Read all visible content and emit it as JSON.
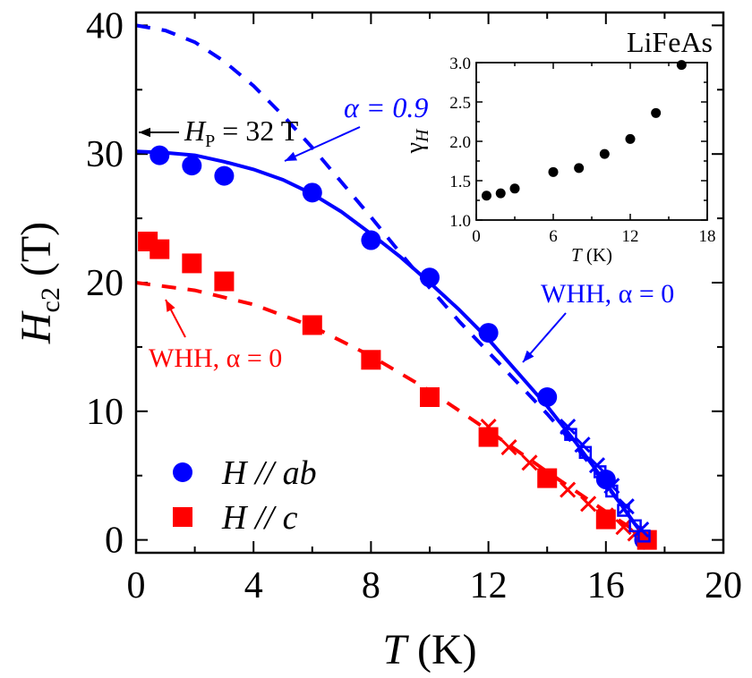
{
  "chart_data": [
    {
      "type": "scatter",
      "xlabel_symbol": "T",
      "xlabel_unit": "(K)",
      "ylabel_symbol": "H",
      "ylabel_sub": "c2",
      "ylabel_unit": "(T)",
      "xlim": [
        0,
        20
      ],
      "ylim": [
        -1,
        41
      ],
      "xticks": [
        0,
        4,
        8,
        12,
        16,
        20
      ],
      "yticks": [
        0,
        10,
        20,
        30,
        40
      ],
      "legend_position": "bottom-left",
      "series": [
        {
          "name": "ab_points",
          "legend": {
            "prefix": "H // ",
            "suffix": "ab"
          },
          "marker": "circle",
          "color": "#0000ff",
          "x": [
            0.8,
            1.9,
            3.0,
            6.0,
            8.0,
            10.0,
            12.0,
            14.0,
            16.0,
            17.3
          ],
          "y": [
            29.9,
            29.1,
            28.3,
            27.0,
            23.3,
            20.4,
            16.1,
            11.1,
            4.7,
            0.0
          ]
        },
        {
          "name": "c_points",
          "legend": {
            "prefix": "H // ",
            "suffix": "c"
          },
          "marker": "square",
          "color": "#ff0000",
          "x": [
            0.4,
            0.8,
            1.9,
            3.0,
            6.0,
            8.0,
            10.0,
            12.0,
            14.0,
            16.0,
            17.4
          ],
          "y": [
            23.2,
            22.6,
            21.5,
            20.1,
            16.7,
            14.0,
            11.1,
            8.0,
            4.8,
            1.6,
            0.0
          ]
        },
        {
          "name": "c_crosses",
          "marker": "x",
          "color": "#ff0000",
          "x": [
            12.0,
            12.7,
            13.4,
            14.0,
            14.7,
            15.4,
            16.0,
            16.6,
            17.0,
            17.4
          ],
          "y": [
            8.8,
            7.2,
            6.0,
            4.9,
            3.9,
            2.8,
            1.9,
            1.0,
            0.5,
            0.0
          ]
        },
        {
          "name": "ab_open_squares",
          "marker": "open-square",
          "color": "#0000ff",
          "x": [
            14.8,
            15.3,
            15.8,
            16.2,
            16.6,
            17.0,
            17.3
          ],
          "y": [
            8.2,
            6.8,
            5.3,
            3.8,
            2.3,
            1.1,
            0.3
          ]
        },
        {
          "name": "ab_crosses",
          "marker": "x",
          "color": "#0000ff",
          "x": [
            14.7,
            15.2,
            15.7,
            16.2,
            16.7,
            17.2
          ],
          "y": [
            8.8,
            7.4,
            5.8,
            4.2,
            2.6,
            0.8
          ]
        }
      ],
      "curves": [
        {
          "name": "ab_fit_alpha_0.9",
          "style": "solid",
          "color": "#0000ff",
          "x": [
            0,
            1,
            2,
            3,
            4,
            5,
            6,
            7,
            8,
            9,
            10,
            11,
            12,
            13,
            14,
            15,
            16,
            16.5,
            17,
            17.4
          ],
          "y": [
            30.2,
            30.1,
            29.9,
            29.4,
            28.8,
            28.0,
            26.9,
            25.5,
            23.8,
            22.0,
            20.0,
            17.9,
            15.6,
            13.0,
            10.4,
            7.5,
            4.4,
            2.8,
            1.2,
            0.0
          ]
        },
        {
          "name": "ab_WHH_alpha_0",
          "style": "dashed",
          "color": "#0000ff",
          "x": [
            0,
            1,
            2,
            3,
            4,
            5,
            6,
            7,
            8,
            9,
            10,
            11,
            12,
            13,
            14,
            15,
            16,
            16.5,
            17,
            17.4
          ],
          "y": [
            40.0,
            39.6,
            38.7,
            37.2,
            35.3,
            33.0,
            30.5,
            27.8,
            25.1,
            22.3,
            19.6,
            17.0,
            14.6,
            12.2,
            9.8,
            7.2,
            4.3,
            2.8,
            1.2,
            0.0
          ]
        },
        {
          "name": "c_WHH_alpha_0",
          "style": "dashed",
          "color": "#ff0000",
          "x": [
            0,
            2,
            4,
            6,
            8,
            10,
            12,
            14,
            16,
            17,
            17.4
          ],
          "y": [
            20.0,
            19.4,
            18.3,
            16.6,
            14.3,
            11.6,
            8.5,
            5.3,
            2.2,
            0.7,
            0.0
          ]
        }
      ],
      "annotations": [
        {
          "name": "alpha-label",
          "text": "α = 0.9",
          "color": "#0000ff"
        },
        {
          "name": "whh-blue-label",
          "text": "WHH, α = 0",
          "color": "#0000ff"
        },
        {
          "name": "whh-red-label",
          "text": "WHH, α = 0",
          "color": "#ff0000"
        },
        {
          "name": "pauli-label",
          "prefix": "H",
          "sub": "P",
          "suffix": " = 32 T",
          "color": "#000000"
        },
        {
          "name": "material-label",
          "text": "LiFeAs",
          "color": "#000000"
        }
      ]
    },
    {
      "type": "scatter",
      "xlabel_symbol": "T",
      "xlabel_unit": "(K)",
      "ylabel_symbol": "γ",
      "ylabel_sub": "H",
      "xlim": [
        0,
        18
      ],
      "ylim": [
        1.0,
        3.0
      ],
      "xticks": [
        0,
        6,
        12,
        18
      ],
      "yticks": [
        1.0,
        1.5,
        2.0,
        2.5,
        3.0
      ],
      "ytick_labels": [
        "1.0",
        "1.5",
        "2.0",
        "2.5",
        "3.0"
      ],
      "series": [
        {
          "name": "gamma",
          "marker": "circle",
          "color": "#000000",
          "x": [
            0.8,
            1.9,
            3.0,
            6.0,
            8.0,
            10.0,
            12.0,
            14.0,
            16.0
          ],
          "y": [
            1.31,
            1.34,
            1.4,
            1.61,
            1.66,
            1.84,
            2.03,
            2.36,
            2.97
          ]
        }
      ]
    }
  ]
}
